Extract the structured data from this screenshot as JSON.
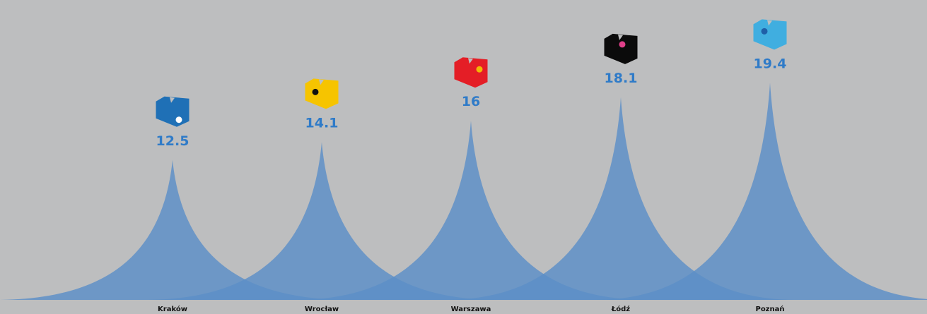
{
  "chart_data": {
    "type": "area",
    "title": "",
    "xlabel": "",
    "ylabel": "",
    "ylim": [
      0,
      20
    ],
    "grid": false,
    "legend": "none",
    "categories": [
      "Kraków",
      "Wrocław",
      "Warszawa",
      "Łódź",
      "Poznań"
    ],
    "values": [
      12.5,
      14.1,
      16,
      18.1,
      19.4
    ],
    "value_labels": [
      "12.5",
      "14.1",
      "16",
      "18.1",
      "19.4"
    ],
    "peak_color": "#5b8fc7",
    "label_color": "#2f7bc8",
    "markers": [
      {
        "icon": "blue-cube-white-dot-icon",
        "body_color": "#1f70b6",
        "dot_color": "#ffffff"
      },
      {
        "icon": "yellow-cube-black-dot-icon",
        "body_color": "#f6c400",
        "dot_color": "#111111"
      },
      {
        "icon": "red-cube-yellow-dot-icon",
        "body_color": "#e41e26",
        "dot_color": "#f2b705"
      },
      {
        "icon": "black-cube-pink-dot-icon",
        "body_color": "#0b0b0b",
        "dot_color": "#e0408a"
      },
      {
        "icon": "light-blue-cube-dark-dot-icon",
        "body_color": "#40aee0",
        "dot_color": "#1f5fa8"
      }
    ]
  }
}
